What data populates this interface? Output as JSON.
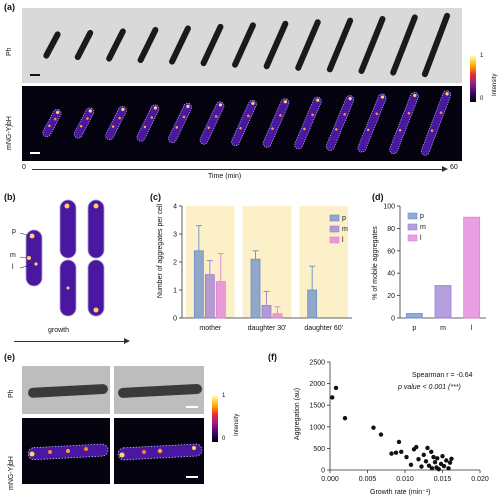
{
  "panel_a": {
    "label": "(a)",
    "row_labels": [
      "Ph",
      "mNG-YjbH"
    ],
    "colorbar_label": "Intensity",
    "colorbar_ticks": [
      "1",
      "0"
    ],
    "time_axis": {
      "start": "0",
      "end": "60",
      "label": "Time (min)"
    },
    "frames": 13
  },
  "panel_b": {
    "label": "(b)",
    "legend": [
      "p",
      "m",
      "l"
    ],
    "arrow_label": "growth"
  },
  "panel_c": {
    "label": "(c)",
    "chart_data": {
      "type": "bar",
      "categories": [
        "mother",
        "daughter 30'",
        "daughter 60'"
      ],
      "series": [
        {
          "name": "p",
          "values": [
            2.4,
            2.1,
            1.0
          ],
          "error": [
            0.9,
            0.3,
            0.85
          ]
        },
        {
          "name": "m",
          "values": [
            1.55,
            0.45,
            null
          ],
          "error": [
            0.5,
            0.5,
            null
          ]
        },
        {
          "name": "l",
          "values": [
            1.3,
            0.15,
            null
          ],
          "error": [
            1.0,
            0.25,
            null
          ]
        }
      ],
      "ylabel": "Number of aggregates per cell",
      "ylim": [
        0,
        4
      ],
      "yticks": [
        0,
        1,
        2,
        3,
        4
      ],
      "legend_placement": "top-right"
    }
  },
  "panel_d": {
    "label": "(d)",
    "chart_data": {
      "type": "bar",
      "categories": [
        "p",
        "m",
        "l"
      ],
      "values": [
        4,
        29,
        90
      ],
      "series_names": [
        "p",
        "m",
        "l"
      ],
      "ylabel": "% of mobile aggregates",
      "ylim": [
        0,
        100
      ],
      "yticks": [
        0,
        20,
        40,
        60,
        80,
        100
      ],
      "legend_placement": "top-left"
    }
  },
  "panel_e": {
    "label": "(e)",
    "row_labels": [
      "Ph",
      "mNG-YjbH"
    ],
    "colorbar_label": "Intensity",
    "colorbar_ticks": [
      "1",
      "0"
    ]
  },
  "panel_f": {
    "label": "(f)",
    "chart_data": {
      "type": "scatter",
      "x": [
        0.0003,
        0.0008,
        0.002,
        0.0058,
        0.0068,
        0.0082,
        0.0088,
        0.0092,
        0.0095,
        0.0102,
        0.0108,
        0.0112,
        0.0115,
        0.0118,
        0.0122,
        0.0125,
        0.0128,
        0.013,
        0.0132,
        0.0135,
        0.0136,
        0.0138,
        0.014,
        0.0142,
        0.0143,
        0.0145,
        0.0148,
        0.015,
        0.0152,
        0.0155,
        0.0158,
        0.016,
        0.0162
      ],
      "y": [
        1680,
        1900,
        1200,
        980,
        820,
        380,
        400,
        650,
        420,
        300,
        120,
        480,
        530,
        250,
        80,
        350,
        200,
        510,
        100,
        420,
        40,
        300,
        180,
        60,
        270,
        20,
        140,
        320,
        90,
        220,
        40,
        170,
        260
      ],
      "xlabel": "Growth rate (min⁻¹)",
      "ylabel": "Aggregation (au)",
      "xlim": [
        0,
        0.02
      ],
      "ylim": [
        0,
        2500
      ],
      "xticks": [
        "0.000",
        "0.005",
        "0.010",
        "0.015",
        "0.020"
      ],
      "yticks": [
        "0",
        "500",
        "1000",
        "1500",
        "2000",
        "2500"
      ],
      "annotation_line1": "Spearman r = -0.64",
      "annotation_line2": "p value < 0.001 (***)"
    }
  },
  "colors": {
    "p": "#6b8fc9",
    "m": "#9b7fd4",
    "l": "#e27fd8",
    "shade": "#fbf0c8",
    "cell_fill": "#4a18a0",
    "dark_bg": "#05030f"
  }
}
